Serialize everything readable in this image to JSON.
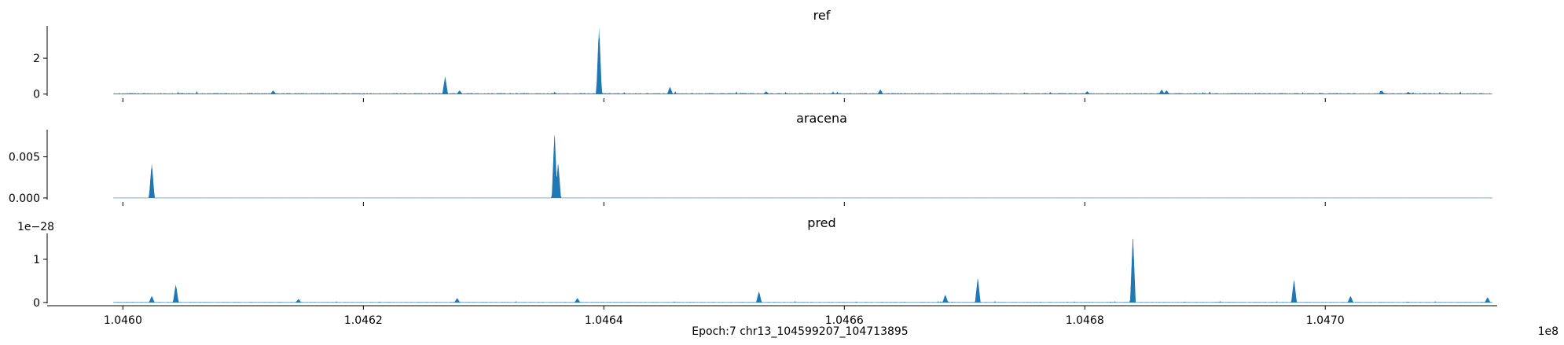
{
  "chart_data": {
    "type": "area",
    "xlabel": "Epoch:7 chr13_104599207_104713895",
    "x_offset_label": "1e8",
    "xlim": [
      104593700,
      104714300
    ],
    "xticks": [
      104600000,
      104620000,
      104640000,
      104660000,
      104680000,
      104700000
    ],
    "xtick_labels": [
      "1.0460",
      "1.0462",
      "1.0464",
      "1.0466",
      "1.0468",
      "1.0470"
    ],
    "x_range": [
      104599207,
      104713895
    ],
    "color": "#1f77b4",
    "grid": false,
    "panels": [
      {
        "title": "ref",
        "ylim": [
          -0.1,
          3.8
        ],
        "yticks": [
          0,
          2
        ],
        "ytick_labels": [
          "0",
          "2"
        ],
        "y_offset_label": "",
        "show_xtick_labels": false,
        "baseline": 0.03,
        "peaks": [
          {
            "x": 104612500,
            "y": 0.2
          },
          {
            "x": 104626800,
            "y": 0.95
          },
          {
            "x": 104628000,
            "y": 0.2
          },
          {
            "x": 104639600,
            "y": 3.7
          },
          {
            "x": 104645500,
            "y": 0.4
          },
          {
            "x": 104653500,
            "y": 0.15
          },
          {
            "x": 104663000,
            "y": 0.25
          },
          {
            "x": 104680200,
            "y": 0.15
          },
          {
            "x": 104686400,
            "y": 0.25
          },
          {
            "x": 104686800,
            "y": 0.2
          },
          {
            "x": 104704700,
            "y": 0.2
          },
          {
            "x": 104706900,
            "y": 0.12
          }
        ]
      },
      {
        "title": "aracena",
        "ylim": [
          -0.0002,
          0.0083
        ],
        "yticks": [
          0.0,
          0.005
        ],
        "ytick_labels": [
          "0.000",
          "0.005"
        ],
        "y_offset_label": "",
        "show_xtick_labels": false,
        "baseline": 0,
        "peaks": [
          {
            "x": 104602400,
            "y": 0.0042
          },
          {
            "x": 104635900,
            "y": 0.0078
          },
          {
            "x": 104636200,
            "y": 0.0042
          }
        ]
      },
      {
        "title": "pred",
        "ylim": [
          -0.02,
          1.6
        ],
        "yticks": [
          0,
          1
        ],
        "ytick_labels": [
          "0",
          "1"
        ],
        "y_offset_label": "1e−28",
        "show_xtick_labels": true,
        "baseline": 0.005,
        "peaks": [
          {
            "x": 104602400,
            "y": 0.15
          },
          {
            "x": 104604400,
            "y": 0.42
          },
          {
            "x": 104614600,
            "y": 0.08
          },
          {
            "x": 104627800,
            "y": 0.1
          },
          {
            "x": 104637800,
            "y": 0.1
          },
          {
            "x": 104652900,
            "y": 0.25
          },
          {
            "x": 104668400,
            "y": 0.18
          },
          {
            "x": 104671100,
            "y": 0.55
          },
          {
            "x": 104684000,
            "y": 1.5
          },
          {
            "x": 104697400,
            "y": 0.52
          },
          {
            "x": 104702100,
            "y": 0.15
          },
          {
            "x": 104713500,
            "y": 0.12
          }
        ]
      }
    ]
  }
}
